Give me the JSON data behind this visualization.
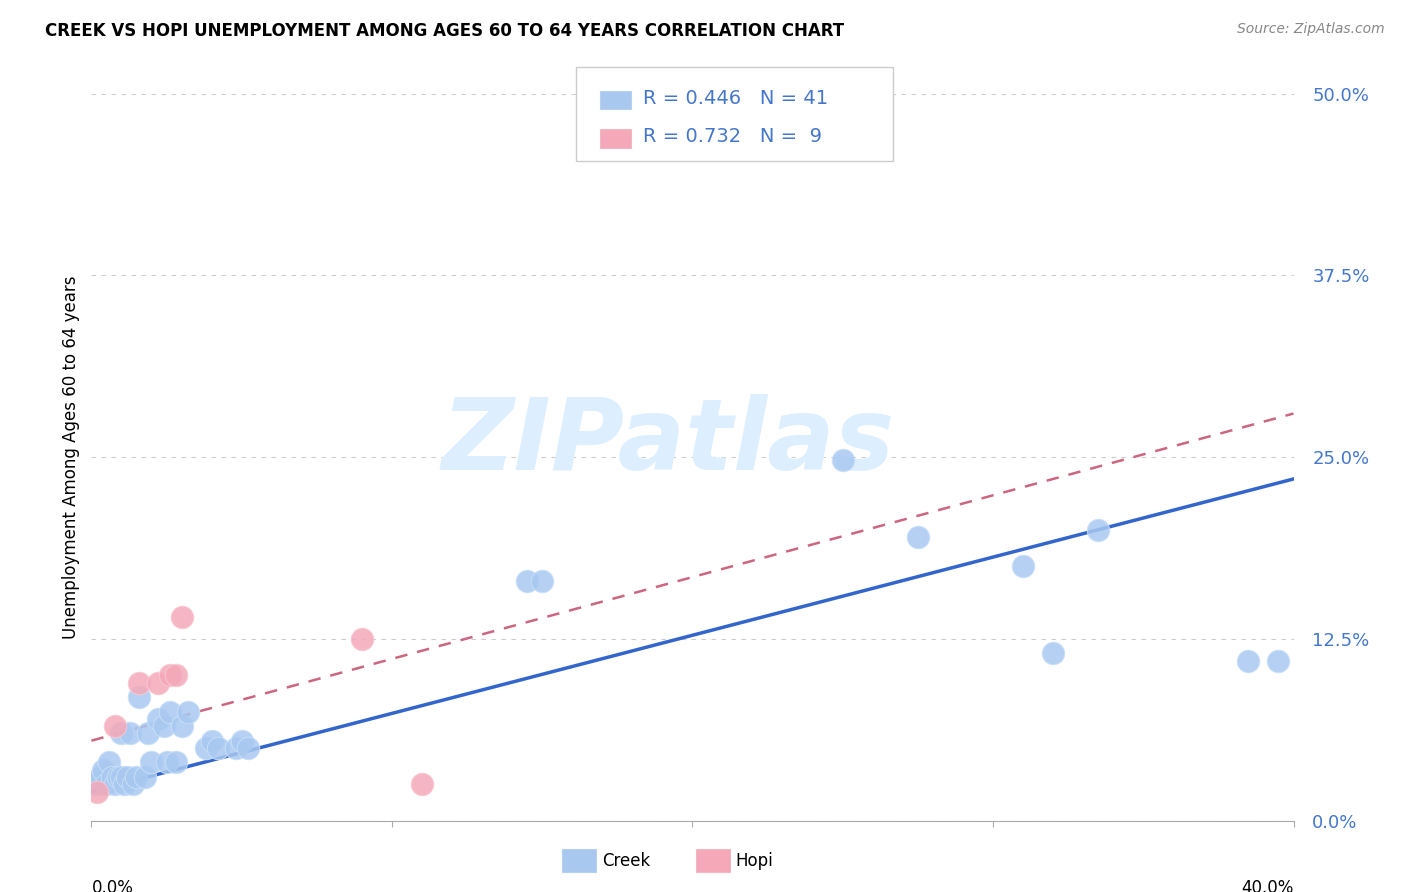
{
  "title": "CREEK VS HOPI UNEMPLOYMENT AMONG AGES 60 TO 64 YEARS CORRELATION CHART",
  "source": "Source: ZipAtlas.com",
  "ylabel": "Unemployment Among Ages 60 to 64 years",
  "ytick_labels": [
    "0.0%",
    "12.5%",
    "25.0%",
    "37.5%",
    "50.0%"
  ],
  "ytick_values": [
    0.0,
    0.125,
    0.25,
    0.375,
    0.5
  ],
  "xlim": [
    0.0,
    0.4
  ],
  "ylim": [
    0.0,
    0.5
  ],
  "creek_R": "0.446",
  "creek_N": "41",
  "hopi_R": "0.732",
  "hopi_N": "9",
  "creek_color": "#a8c8f0",
  "creek_line_color": "#3366cc",
  "hopi_color": "#f4a8b8",
  "hopi_line_color": "#cc6680",
  "creek_scatter_x": [
    0.002,
    0.003,
    0.004,
    0.005,
    0.006,
    0.007,
    0.008,
    0.009,
    0.01,
    0.01,
    0.011,
    0.012,
    0.013,
    0.014,
    0.015,
    0.016,
    0.018,
    0.019,
    0.02,
    0.022,
    0.024,
    0.025,
    0.026,
    0.028,
    0.03,
    0.032,
    0.038,
    0.04,
    0.042,
    0.048,
    0.05,
    0.052,
    0.145,
    0.15,
    0.25,
    0.275,
    0.31,
    0.32,
    0.335,
    0.385,
    0.395
  ],
  "creek_scatter_y": [
    0.025,
    0.03,
    0.035,
    0.025,
    0.04,
    0.03,
    0.025,
    0.03,
    0.03,
    0.06,
    0.025,
    0.03,
    0.06,
    0.025,
    0.03,
    0.085,
    0.03,
    0.06,
    0.04,
    0.07,
    0.065,
    0.04,
    0.075,
    0.04,
    0.065,
    0.075,
    0.05,
    0.055,
    0.05,
    0.05,
    0.055,
    0.05,
    0.165,
    0.165,
    0.248,
    0.195,
    0.175,
    0.115,
    0.2,
    0.11,
    0.11
  ],
  "hopi_scatter_x": [
    0.002,
    0.008,
    0.016,
    0.022,
    0.026,
    0.028,
    0.03,
    0.09,
    0.11
  ],
  "hopi_scatter_y": [
    0.02,
    0.065,
    0.095,
    0.095,
    0.1,
    0.1,
    0.14,
    0.125,
    0.025
  ],
  "watermark_text": "ZIPatlas",
  "watermark_color": "#ddeeff",
  "legend_text_color": "#4477cc",
  "background_color": "#ffffff",
  "grid_color": "#cccccc",
  "creek_line_x": [
    0.0,
    0.4
  ],
  "creek_line_y": [
    0.02,
    0.235
  ],
  "hopi_line_x": [
    0.0,
    0.4
  ],
  "hopi_line_y": [
    0.055,
    0.28
  ]
}
